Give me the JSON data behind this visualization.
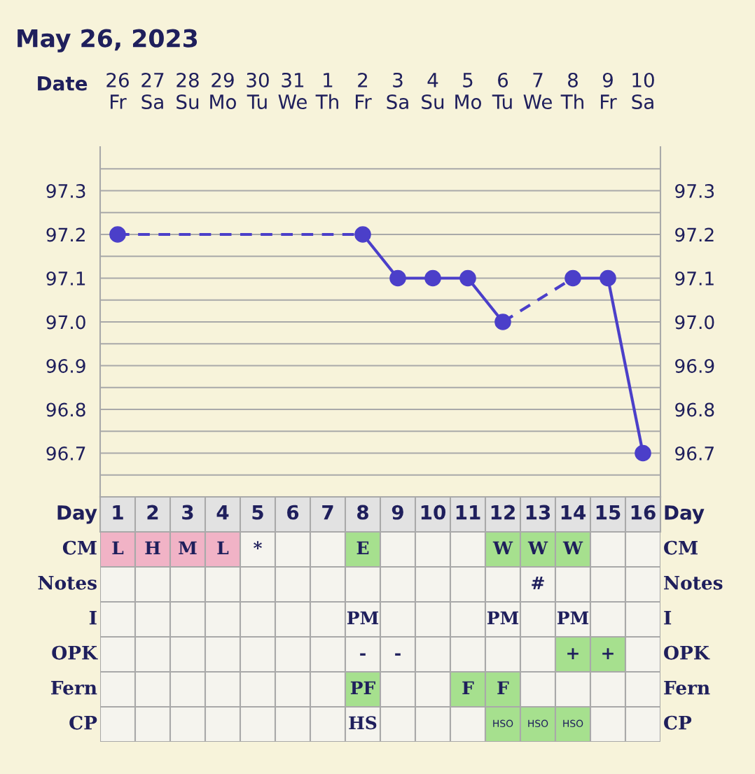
{
  "chart_data": [
    {
      "type": "line",
      "title": "May 26, 2023",
      "xlabel": "Date",
      "categories": [
        "26\nFr",
        "27\nSa",
        "28\nSu",
        "29\nMo",
        "30\nTu",
        "31\nWe",
        "1\nTh",
        "2\nFr",
        "3\nSa",
        "4\nSu",
        "5\nMo",
        "6\nTu",
        "7\nWe",
        "8\nTh",
        "9\nFr",
        "10\nSa"
      ],
      "series": [
        {
          "color": "#4b3fc9",
          "values": [
            97.2,
            null,
            null,
            null,
            null,
            null,
            null,
            97.2,
            97.1,
            97.1,
            97.1,
            97.0,
            null,
            97.1,
            97.1,
            96.7
          ]
        }
      ],
      "ylim": [
        96.6,
        97.4
      ],
      "yticks": [
        {
          "value": 96.65,
          "label": null
        },
        96.7,
        {
          "value": 96.75,
          "label": null
        },
        96.8,
        {
          "value": 96.85,
          "label": null
        },
        96.9,
        {
          "value": 96.95,
          "label": null
        },
        {
          "value": 97.0,
          "label": "97.0"
        },
        {
          "value": 97.05,
          "label": null
        },
        97.1,
        {
          "value": 97.15,
          "label": null
        },
        97.2,
        {
          "value": 97.25,
          "label": null
        },
        97.3,
        {
          "value": 97.35,
          "label": null
        }
      ],
      "y2lim": [
        96.6,
        97.4
      ],
      "y2ticks": [
        96.7,
        96.8,
        96.9,
        {
          "value": 97.0,
          "label": "97.0"
        },
        97.1,
        97.2,
        97.3
      ],
      "grid": true,
      "marker": "circle",
      "legend": false
    },
    {
      "type": "heatmap",
      "xlabel": "Day",
      "cells": [
        [
          null,
          null,
          null,
          null,
          null,
          null,
          null,
          null,
          null,
          null,
          null,
          null,
          null,
          null,
          null,
          null
        ],
        [
          null,
          null,
          null,
          null,
          null,
          null,
          null,
          null,
          null,
          null,
          null,
          null,
          null,
          null,
          null,
          null
        ],
        [
          null,
          null,
          null,
          null,
          null,
          null,
          null,
          null,
          null,
          null,
          null,
          null,
          null,
          null,
          null,
          null
        ],
        [
          null,
          null,
          null,
          null,
          null,
          null,
          null,
          null,
          null,
          null,
          null,
          null,
          null,
          null,
          null,
          null
        ],
        [
          null,
          null,
          null,
          null,
          null,
          null,
          null,
          null,
          null,
          null,
          null,
          null,
          null,
          null,
          null,
          null
        ],
        [
          null,
          null,
          null,
          null,
          null,
          null,
          null,
          null,
          null,
          null,
          null,
          null,
          null,
          null,
          null,
          null
        ]
      ],
      "categories": [
        "1",
        "2",
        "3",
        "4",
        "5",
        "6",
        "7",
        "8",
        "9",
        "10",
        "11",
        "12",
        "13",
        "14",
        "15",
        "16"
      ],
      "y_categories": [
        "CM",
        "Notes",
        "I",
        "OPK",
        "Fern",
        "CP"
      ],
      "y2_categories": [
        "CM",
        "Notes",
        "I",
        "OPK",
        "Fern",
        "CP"
      ],
      "cell_labels": [
        [
          "L",
          "H",
          "M",
          "L",
          "*",
          null,
          null,
          "E",
          null,
          null,
          null,
          "W",
          "W",
          "W",
          null,
          null
        ],
        [
          null,
          null,
          null,
          null,
          null,
          null,
          null,
          null,
          null,
          null,
          null,
          null,
          "#",
          null,
          null,
          null
        ],
        [
          null,
          null,
          null,
          null,
          null,
          null,
          null,
          "PM",
          null,
          null,
          null,
          "PM",
          null,
          "PM",
          null,
          null
        ],
        [
          null,
          null,
          null,
          null,
          null,
          null,
          null,
          "-",
          "-",
          null,
          null,
          null,
          null,
          "+",
          "+",
          null
        ],
        [
          null,
          null,
          null,
          null,
          null,
          null,
          null,
          "PF",
          null,
          null,
          "F",
          "F",
          null,
          null,
          null,
          null
        ],
        [
          null,
          null,
          null,
          null,
          null,
          null,
          null,
          "HS",
          null,
          null,
          null,
          "HSO",
          "HSO",
          "HSO",
          null,
          null
        ]
      ],
      "colors": [
        [
          "#f1b3c6",
          "#f1b3c6",
          "#f1b3c6",
          "#f1b3c6",
          null,
          null,
          null,
          "#a6e08e",
          null,
          null,
          null,
          "#a6e08e",
          "#a6e08e",
          "#a6e08e",
          null,
          null
        ],
        [
          null,
          null,
          null,
          null,
          null,
          null,
          null,
          null,
          null,
          null,
          null,
          null,
          null,
          null,
          null,
          null
        ],
        [
          null,
          null,
          null,
          null,
          null,
          null,
          null,
          null,
          null,
          null,
          null,
          null,
          null,
          null,
          null,
          null
        ],
        [
          null,
          null,
          null,
          null,
          null,
          null,
          null,
          null,
          null,
          null,
          null,
          null,
          null,
          "#a6e08e",
          "#a6e08e",
          null
        ],
        [
          null,
          null,
          null,
          null,
          null,
          null,
          null,
          "#a6e08e",
          null,
          null,
          "#a6e08e",
          "#a6e08e",
          null,
          null,
          null,
          null
        ],
        [
          null,
          null,
          null,
          null,
          null,
          null,
          null,
          null,
          null,
          null,
          null,
          "#a6e08e",
          "#a6e08e",
          "#a6e08e",
          null,
          null
        ]
      ]
    }
  ]
}
